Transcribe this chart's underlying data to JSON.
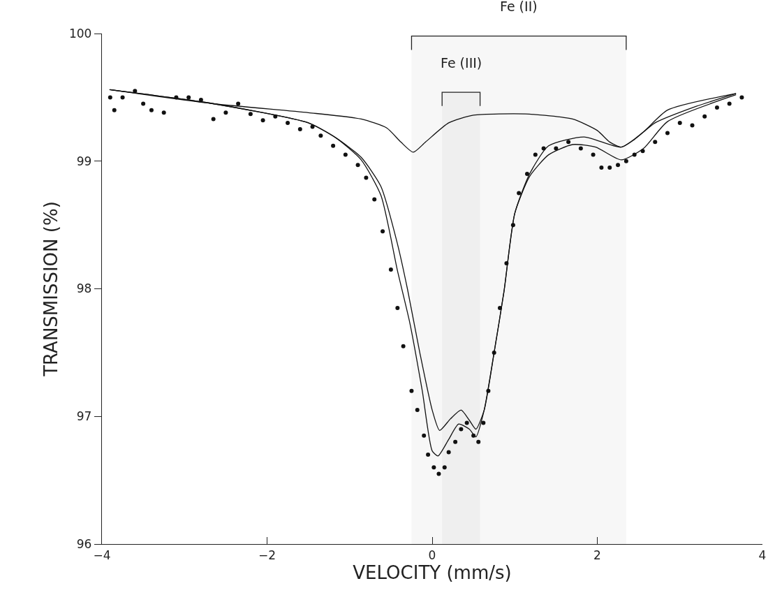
{
  "chart_data": {
    "type": "line",
    "xlabel": "VELOCITY (mm/s)",
    "ylabel": "TRANSMISSION (%)",
    "xlim": [
      -4,
      4
    ],
    "ylim": [
      96,
      100
    ],
    "xticks": [
      -4,
      -2,
      0,
      2,
      4
    ],
    "yticks": [
      96,
      97,
      98,
      99,
      100
    ],
    "grid": false,
    "bands": [
      {
        "axis": "x",
        "from": -0.25,
        "to": 2.35,
        "label": "Fe (II)"
      },
      {
        "axis": "x",
        "from": 0.12,
        "to": 0.58,
        "label": "Fe (III)"
      }
    ],
    "series": [
      {
        "type": "scatter",
        "marker": "circle",
        "color": "#111111",
        "x": [
          -3.9,
          -3.85,
          -3.75,
          -3.6,
          -3.5,
          -3.4,
          -3.25,
          -3.1,
          -2.95,
          -2.8,
          -2.65,
          -2.5,
          -2.35,
          -2.2,
          -2.05,
          -1.9,
          -1.75,
          -1.6,
          -1.45,
          -1.35,
          -1.2,
          -1.05,
          -0.9,
          -0.8,
          -0.7,
          -0.6,
          -0.5,
          -0.42,
          -0.35,
          -0.25,
          -0.18,
          -0.1,
          -0.05,
          0.02,
          0.08,
          0.15,
          0.2,
          0.28,
          0.35,
          0.42,
          0.5,
          0.56,
          0.62,
          0.68,
          0.75,
          0.82,
          0.9,
          0.98,
          1.05,
          1.15,
          1.25,
          1.35,
          1.5,
          1.65,
          1.8,
          1.95,
          2.05,
          2.15,
          2.25,
          2.35,
          2.45,
          2.55,
          2.7,
          2.85,
          3.0,
          3.15,
          3.3,
          3.45,
          3.6,
          3.75
        ],
        "values": [
          99.5,
          99.4,
          99.5,
          99.55,
          99.45,
          99.4,
          99.38,
          99.5,
          99.5,
          99.48,
          99.33,
          99.38,
          99.45,
          99.37,
          99.32,
          99.35,
          99.3,
          99.25,
          99.27,
          99.2,
          99.12,
          99.05,
          98.97,
          98.87,
          98.7,
          98.45,
          98.15,
          97.85,
          97.55,
          97.2,
          97.05,
          96.85,
          96.7,
          96.6,
          96.55,
          96.6,
          96.72,
          96.8,
          96.9,
          96.95,
          96.85,
          96.8,
          96.95,
          97.2,
          97.5,
          97.85,
          98.2,
          98.5,
          98.75,
          98.9,
          99.05,
          99.1,
          99.1,
          99.15,
          99.1,
          99.05,
          98.95,
          98.95,
          98.97,
          99.0,
          99.05,
          99.08,
          99.15,
          99.22,
          99.3,
          99.28,
          99.35,
          99.42,
          99.45,
          99.5
        ]
      },
      {
        "color": "#111111",
        "x": [
          -3.9,
          -2.65,
          -1.5,
          -1.16,
          -0.86,
          -0.62,
          -0.42,
          -0.27,
          -0.12,
          0.0,
          0.07,
          0.2,
          0.32,
          0.45,
          0.53,
          0.63,
          0.75,
          0.87,
          1.0,
          1.18,
          1.41,
          1.7,
          1.98,
          2.29,
          2.56,
          2.85,
          3.68
        ],
        "values": [
          99.56,
          99.45,
          99.3,
          99.18,
          99.01,
          98.73,
          98.14,
          97.73,
          97.2,
          96.73,
          96.69,
          96.82,
          96.94,
          96.9,
          96.84,
          97.05,
          97.5,
          97.98,
          98.59,
          98.88,
          99.05,
          99.13,
          99.11,
          99.01,
          99.1,
          99.31,
          99.52
        ]
      },
      {
        "color": "#111111",
        "x": [
          -3.9,
          -2.65,
          -1.5,
          -1.16,
          -0.86,
          -0.62,
          -0.42,
          -0.3,
          -0.15,
          0.0,
          0.09,
          0.22,
          0.35,
          0.45,
          0.53,
          0.63,
          0.75,
          0.87,
          1.0,
          1.18,
          1.41,
          1.84,
          2.29,
          2.56,
          2.85,
          3.68
        ],
        "values": [
          99.56,
          99.45,
          99.3,
          99.18,
          99.03,
          98.8,
          98.35,
          98.0,
          97.5,
          97.05,
          96.89,
          96.98,
          97.05,
          96.97,
          96.9,
          97.05,
          97.5,
          97.98,
          98.59,
          98.9,
          99.12,
          99.19,
          99.11,
          99.23,
          99.4,
          99.53
        ]
      },
      {
        "color": "#111111",
        "x": [
          -3.91,
          -2.65,
          -1.5,
          -0.86,
          -0.55,
          -0.38,
          -0.23,
          -0.08,
          0.2,
          0.5,
          1.13,
          1.7,
          2.0,
          2.15,
          2.29,
          2.45,
          2.7,
          3.2,
          3.68
        ],
        "values": [
          99.56,
          99.45,
          99.38,
          99.33,
          99.26,
          99.15,
          99.07,
          99.15,
          99.3,
          99.36,
          99.37,
          99.33,
          99.24,
          99.15,
          99.11,
          99.17,
          99.3,
          99.43,
          99.53
        ]
      }
    ]
  }
}
